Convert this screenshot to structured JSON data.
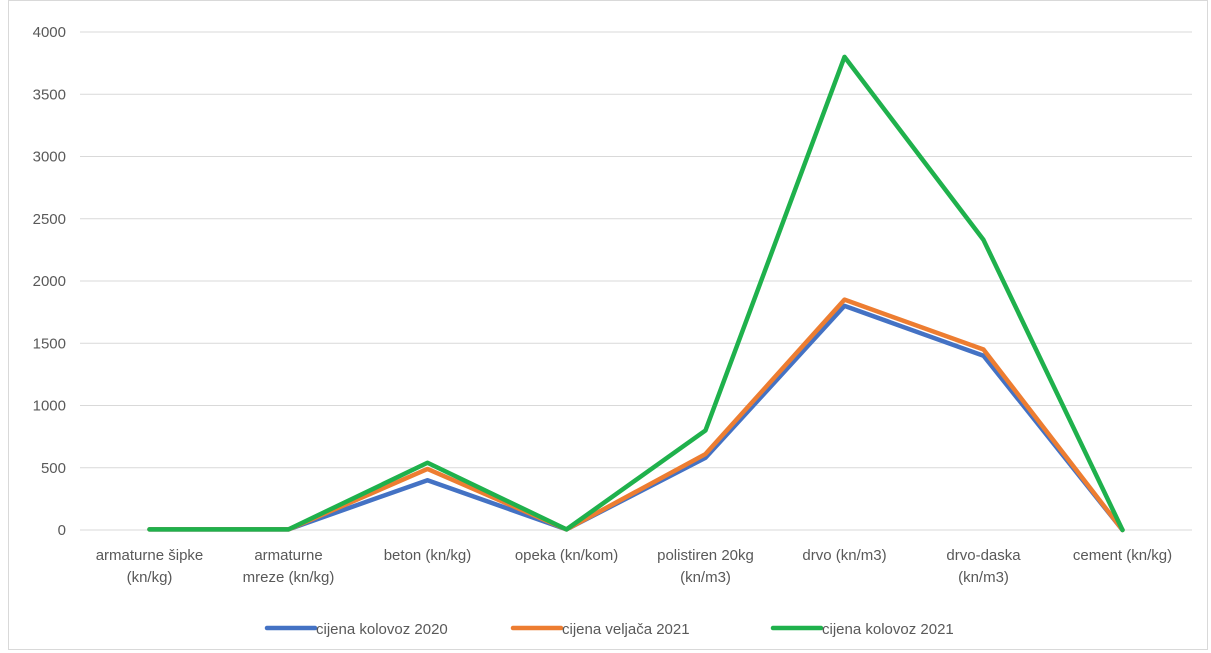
{
  "chart_data": {
    "type": "line",
    "title": "",
    "xlabel": "",
    "ylabel": "",
    "ylim": [
      0,
      4000
    ],
    "y_ticks": [
      0,
      500,
      1000,
      1500,
      2000,
      2500,
      3000,
      3500,
      4000
    ],
    "grid": true,
    "legend_position": "bottom",
    "categories": [
      [
        "armaturne šipke",
        "(kn/kg)"
      ],
      [
        "armaturne",
        "mreze (kn/kg)"
      ],
      [
        "beton (kn/kg)"
      ],
      [
        "opeka (kn/kom)"
      ],
      [
        "polistiren 20kg",
        "(kn/m3)"
      ],
      [
        "drvo (kn/m3)"
      ],
      [
        "drvo-daska",
        "(kn/m3)"
      ],
      [
        "cement (kn/kg)"
      ]
    ],
    "series": [
      {
        "name": "cijena kolovoz 2020",
        "color": "#4472c4",
        "values": [
          5,
          5,
          400,
          5,
          580,
          1800,
          1400,
          0
        ]
      },
      {
        "name": "cijena veljača 2021",
        "color": "#ed7d31",
        "values": [
          5,
          5,
          490,
          5,
          610,
          1850,
          1450,
          0
        ]
      },
      {
        "name": "cijena kolovoz 2021",
        "color": "#1fb14c",
        "values": [
          5,
          5,
          540,
          5,
          800,
          3800,
          2330,
          0
        ]
      }
    ]
  }
}
